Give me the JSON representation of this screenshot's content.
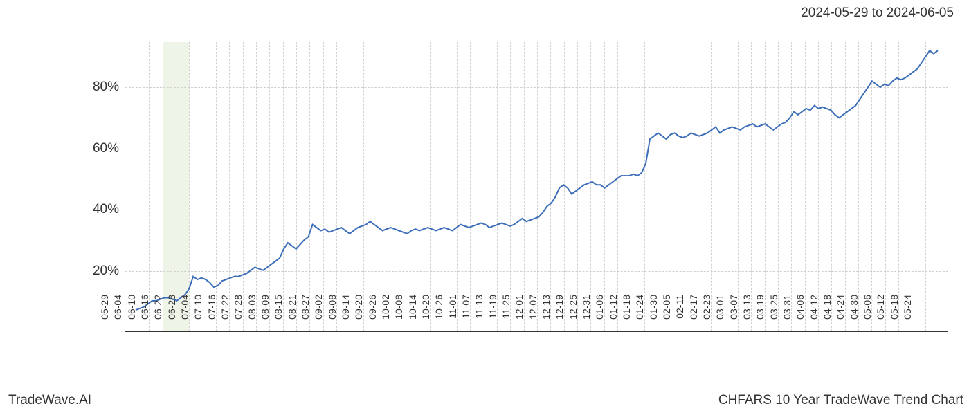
{
  "header": {
    "date_range": "2024-05-29 to 2024-06-05"
  },
  "footer": {
    "brand": "TradeWave.AI",
    "title": "CHFARS 10 Year TradeWave Trend Chart"
  },
  "chart": {
    "type": "line",
    "background_color": "#ffffff",
    "grid_color": "#d0d0d0",
    "axis_color": "#333333",
    "line_color": "#3b6db8",
    "line_width": 2,
    "highlight_band": {
      "color": "#e8efe0",
      "x_start_index": 2,
      "x_end_index": 4
    },
    "y_axis": {
      "min": 0,
      "max": 95,
      "ticks": [
        20,
        40,
        60,
        80
      ],
      "tick_labels": [
        "20%",
        "40%",
        "60%",
        "80%"
      ],
      "label_fontsize": 19
    },
    "x_axis": {
      "tick_labels": [
        "05-29",
        "06-04",
        "06-10",
        "06-16",
        "06-22",
        "06-28",
        "07-04",
        "07-10",
        "07-16",
        "07-22",
        "07-28",
        "08-03",
        "08-09",
        "08-15",
        "08-21",
        "08-27",
        "09-02",
        "09-08",
        "09-14",
        "09-20",
        "09-26",
        "10-02",
        "10-08",
        "10-14",
        "10-20",
        "10-26",
        "11-01",
        "11-07",
        "11-13",
        "11-19",
        "11-25",
        "12-01",
        "12-07",
        "12-13",
        "12-19",
        "12-25",
        "12-31",
        "01-06",
        "01-12",
        "01-18",
        "01-24",
        "01-30",
        "02-05",
        "02-11",
        "02-17",
        "02-23",
        "03-01",
        "03-07",
        "03-13",
        "03-19",
        "03-25",
        "03-31",
        "04-06",
        "04-12",
        "04-18",
        "04-24",
        "04-30",
        "05-06",
        "05-12",
        "05-18",
        "05-24"
      ],
      "label_fontsize": 14,
      "label_rotation": -90
    },
    "series": {
      "values": [
        7,
        7.5,
        8,
        9,
        10,
        10,
        10.5,
        11,
        11,
        10.5,
        10,
        11,
        12,
        14,
        18,
        17,
        17.5,
        17,
        16,
        14.5,
        15,
        16.5,
        17,
        17.5,
        18,
        18,
        18.5,
        19,
        20,
        21,
        20.5,
        20,
        21,
        22,
        23,
        24,
        27,
        29,
        28,
        27,
        28.5,
        30,
        31,
        35,
        34,
        33,
        33.5,
        32.5,
        33,
        33.5,
        34,
        33,
        32,
        33,
        34,
        34.5,
        35,
        36,
        35,
        34,
        33,
        33.5,
        34,
        33.5,
        33,
        32.5,
        32,
        33,
        33.5,
        33,
        33.5,
        34,
        33.5,
        33,
        33.5,
        34,
        33.5,
        33,
        34,
        35,
        34.5,
        34,
        34.5,
        35,
        35.5,
        35,
        34,
        34.5,
        35,
        35.5,
        35,
        34.5,
        35,
        36,
        37,
        36,
        36.5,
        37,
        37.5,
        39,
        41,
        42,
        44,
        47,
        48,
        47,
        45,
        46,
        47,
        48,
        48.5,
        49,
        48,
        48,
        47,
        48,
        49,
        50,
        51,
        51,
        51,
        51.5,
        51,
        52,
        55,
        63,
        64,
        65,
        64,
        63,
        64.5,
        65,
        64,
        63.5,
        64,
        65,
        64.5,
        64,
        64.5,
        65,
        66,
        67,
        65,
        66,
        66.5,
        67,
        66.5,
        66,
        67,
        67.5,
        68,
        67,
        67.5,
        68,
        67,
        66,
        67,
        68,
        68.5,
        70,
        72,
        71,
        72,
        73,
        72.5,
        74,
        73,
        73.5,
        73,
        72.5,
        71,
        70,
        71,
        72,
        73,
        74,
        76,
        78,
        80,
        82,
        81,
        80,
        81,
        80.5,
        82,
        83,
        82.5,
        83,
        84,
        85,
        86,
        88,
        90,
        92,
        91,
        92
      ]
    }
  }
}
